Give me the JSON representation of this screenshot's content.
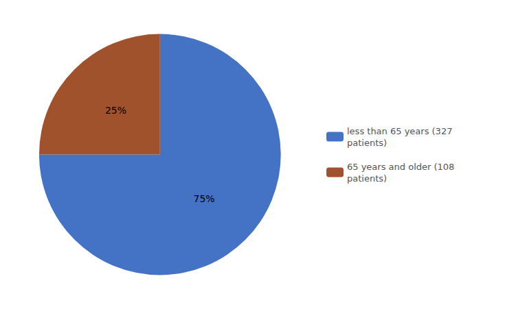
{
  "chart_data": {
    "type": "pie",
    "categories": [
      "less than 65 years (327\npatients)",
      "65 years and older (108\npatients)"
    ],
    "values": [
      75,
      25
    ],
    "value_labels": [
      "75%",
      "25%"
    ],
    "colors": [
      "#4472C4",
      "#A0522D"
    ],
    "data_labels": true,
    "legend": "right"
  }
}
